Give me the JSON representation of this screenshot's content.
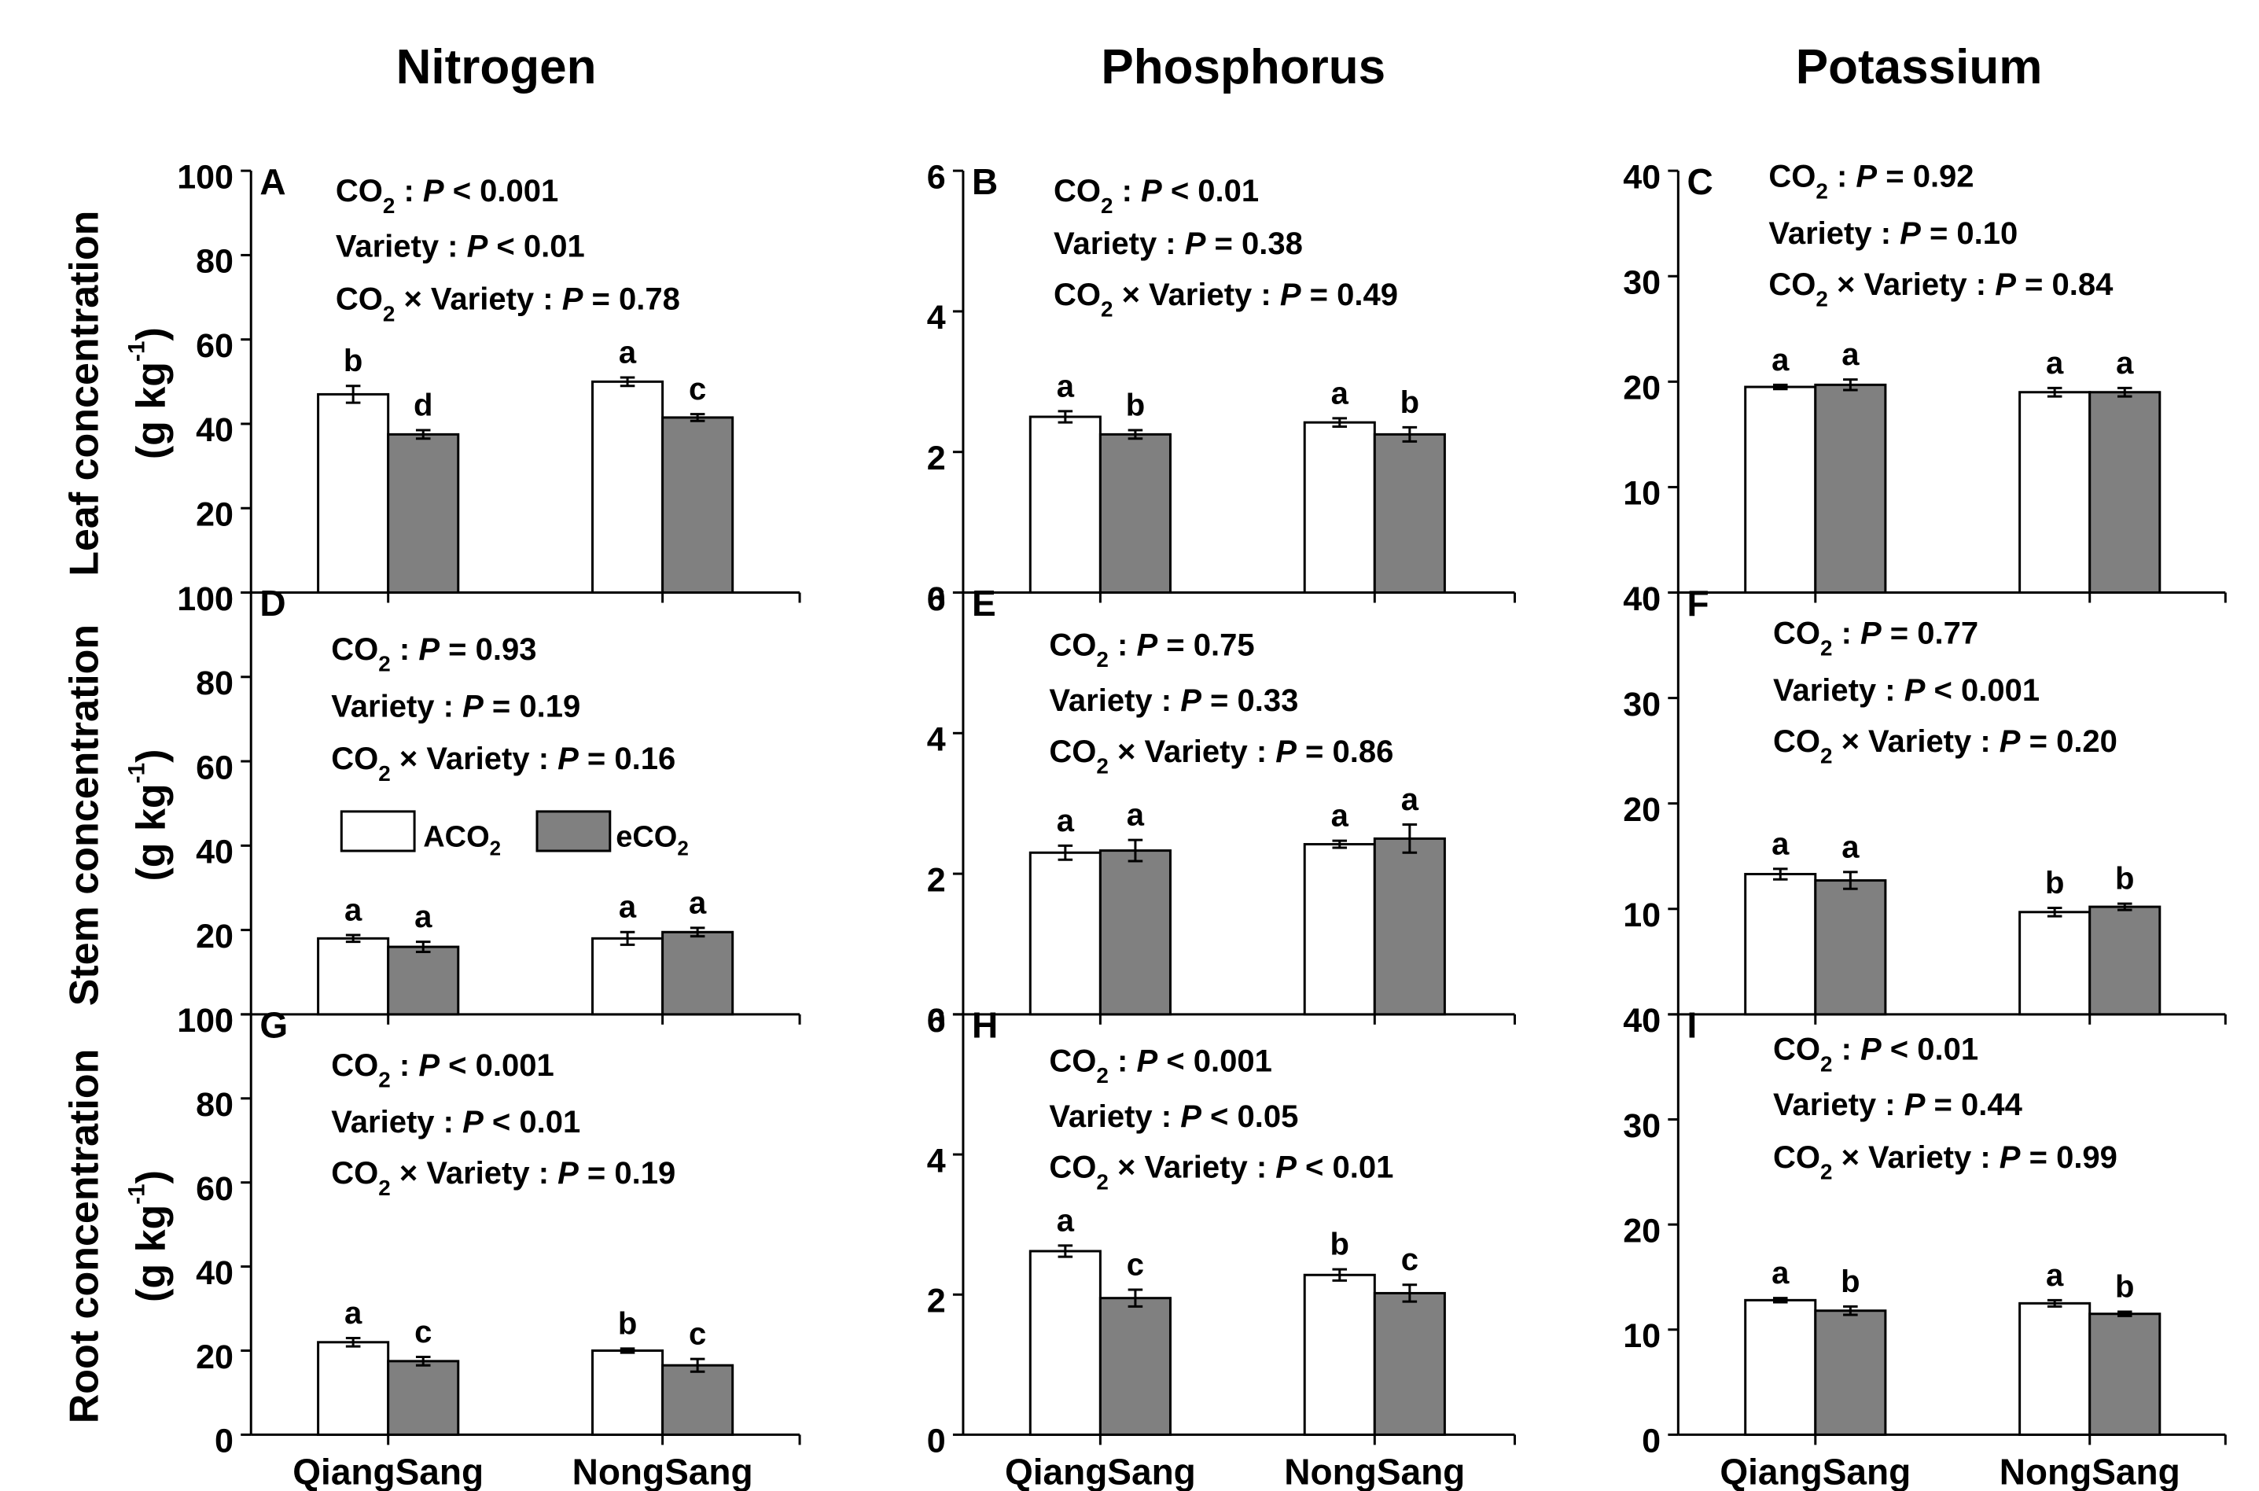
{
  "figure": {
    "column_titles": [
      "Nitrogen",
      "Phosphorus",
      "Potassium"
    ],
    "row_labels": [
      {
        "line1": "Leaf concentration",
        "line2": "(g kg",
        "sup": "-1",
        "close": ")"
      },
      {
        "line1": "Stem concentration",
        "line2": "(g kg",
        "sup": "-1",
        "close": ")"
      },
      {
        "line1": "Root concentration",
        "line2": "(g kg",
        "sup": "-1",
        "close": ")"
      }
    ],
    "legend": {
      "ambient": "ACO2",
      "elevated": "eCO2"
    },
    "colors": {
      "ambient_fill": "#ffffff",
      "elevated_fill": "#808080",
      "stroke": "#000000"
    }
  },
  "chart_data": [
    {
      "panel": "A",
      "row": 0,
      "col": 0,
      "type": "bar",
      "categories": [
        "QiangSang",
        "NongSang"
      ],
      "ylim": [
        0,
        100
      ],
      "ticks": [
        0,
        20,
        40,
        60,
        80,
        100
      ],
      "series": [
        {
          "name": "ACO2",
          "values": [
            47,
            50
          ],
          "errors": [
            2.0,
            1.0
          ],
          "letters": [
            "b",
            "a"
          ]
        },
        {
          "name": "eCO2",
          "values": [
            37.5,
            41.5
          ],
          "errors": [
            1.0,
            0.8
          ],
          "letters": [
            "d",
            "c"
          ]
        }
      ],
      "stats": [
        {
          "pre": "CO",
          "sub": "2",
          "mid": " : ",
          "ital": "P",
          "post": " < 0.001"
        },
        {
          "pre": "Variety : ",
          "sub": "",
          "mid": "",
          "ital": "P",
          "post": " < 0.01"
        },
        {
          "pre": "CO",
          "sub": "2",
          "mid": " × Variety : ",
          "ital": "P",
          "post": " = 0.78"
        }
      ]
    },
    {
      "panel": "B",
      "row": 0,
      "col": 1,
      "type": "bar",
      "categories": [
        "QiangSang",
        "NongSang"
      ],
      "ylim": [
        0,
        6
      ],
      "ticks": [
        0,
        2,
        4,
        6
      ],
      "series": [
        {
          "name": "ACO2",
          "values": [
            2.5,
            2.42
          ],
          "errors": [
            0.08,
            0.06
          ],
          "letters": [
            "a",
            "a"
          ]
        },
        {
          "name": "eCO2",
          "values": [
            2.25,
            2.25
          ],
          "errors": [
            0.06,
            0.1
          ],
          "letters": [
            "b",
            "b"
          ]
        }
      ],
      "stats": [
        {
          "pre": "CO",
          "sub": "2",
          "mid": " : ",
          "ital": "P",
          "post": " < 0.01"
        },
        {
          "pre": "Variety : ",
          "sub": "",
          "mid": "",
          "ital": "P",
          "post": " = 0.38"
        },
        {
          "pre": "CO",
          "sub": "2",
          "mid": " × Variety : ",
          "ital": "P",
          "post": " = 0.49"
        }
      ]
    },
    {
      "panel": "C",
      "row": 0,
      "col": 2,
      "type": "bar",
      "categories": [
        "QiangSang",
        "NongSang"
      ],
      "ylim": [
        0,
        40
      ],
      "ticks": [
        0,
        10,
        20,
        30,
        40
      ],
      "series": [
        {
          "name": "ACO2",
          "values": [
            19.5,
            19.0
          ],
          "errors": [
            0.2,
            0.4
          ],
          "letters": [
            "a",
            "a"
          ]
        },
        {
          "name": "eCO2",
          "values": [
            19.7,
            19.0
          ],
          "errors": [
            0.5,
            0.4
          ],
          "letters": [
            "a",
            "a"
          ]
        }
      ],
      "stats": [
        {
          "pre": "CO",
          "sub": "2",
          "mid": " : ",
          "ital": "P",
          "post": " = 0.92"
        },
        {
          "pre": "Variety : ",
          "sub": "",
          "mid": "",
          "ital": "P",
          "post": " = 0.10"
        },
        {
          "pre": "CO",
          "sub": "2",
          "mid": " × Variety : ",
          "ital": "P",
          "post": " = 0.84"
        }
      ]
    },
    {
      "panel": "D",
      "row": 1,
      "col": 0,
      "type": "bar",
      "categories": [
        "QiangSang",
        "NongSang"
      ],
      "ylim": [
        0,
        100
      ],
      "ticks": [
        0,
        20,
        40,
        60,
        80,
        100
      ],
      "series": [
        {
          "name": "ACO2",
          "values": [
            18,
            18
          ],
          "errors": [
            0.8,
            1.5
          ],
          "letters": [
            "a",
            "a"
          ]
        },
        {
          "name": "eCO2",
          "values": [
            16,
            19.5
          ],
          "errors": [
            1.2,
            1.0
          ],
          "letters": [
            "a",
            "a"
          ]
        }
      ],
      "stats": [
        {
          "pre": "CO",
          "sub": "2",
          "mid": " : ",
          "ital": "P",
          "post": " = 0.93"
        },
        {
          "pre": "Variety : ",
          "sub": "",
          "mid": "",
          "ital": "P",
          "post": " = 0.19"
        },
        {
          "pre": "CO",
          "sub": "2",
          "mid": " × Variety : ",
          "ital": "P",
          "post": " = 0.16"
        }
      ]
    },
    {
      "panel": "E",
      "row": 1,
      "col": 1,
      "type": "bar",
      "categories": [
        "QiangSang",
        "NongSang"
      ],
      "ylim": [
        0,
        6
      ],
      "ticks": [
        0,
        2,
        4,
        6
      ],
      "series": [
        {
          "name": "ACO2",
          "values": [
            2.3,
            2.42
          ],
          "errors": [
            0.1,
            0.05
          ],
          "letters": [
            "a",
            "a"
          ]
        },
        {
          "name": "eCO2",
          "values": [
            2.33,
            2.5
          ],
          "errors": [
            0.15,
            0.2
          ],
          "letters": [
            "a",
            "a"
          ]
        }
      ],
      "stats": [
        {
          "pre": "CO",
          "sub": "2",
          "mid": " : ",
          "ital": "P",
          "post": " = 0.75"
        },
        {
          "pre": "Variety : ",
          "sub": "",
          "mid": "",
          "ital": "P",
          "post": " = 0.33"
        },
        {
          "pre": "CO",
          "sub": "2",
          "mid": " × Variety : ",
          "ital": "P",
          "post": " = 0.86"
        }
      ]
    },
    {
      "panel": "F",
      "row": 1,
      "col": 2,
      "type": "bar",
      "categories": [
        "QiangSang",
        "NongSang"
      ],
      "ylim": [
        0,
        40
      ],
      "ticks": [
        0,
        10,
        20,
        30,
        40
      ],
      "series": [
        {
          "name": "ACO2",
          "values": [
            13.3,
            9.7
          ],
          "errors": [
            0.5,
            0.4
          ],
          "letters": [
            "a",
            "b"
          ]
        },
        {
          "name": "eCO2",
          "values": [
            12.7,
            10.2
          ],
          "errors": [
            0.8,
            0.3
          ],
          "letters": [
            "a",
            "b"
          ]
        }
      ],
      "stats": [
        {
          "pre": "CO",
          "sub": "2",
          "mid": " : ",
          "ital": "P",
          "post": " = 0.77"
        },
        {
          "pre": "Variety : ",
          "sub": "",
          "mid": "",
          "ital": "P",
          "post": " < 0.001"
        },
        {
          "pre": "CO",
          "sub": "2",
          "mid": " × Variety : ",
          "ital": "P",
          "post": " = 0.20"
        }
      ]
    },
    {
      "panel": "G",
      "row": 2,
      "col": 0,
      "type": "bar",
      "categories": [
        "QiangSang",
        "NongSang"
      ],
      "ylim": [
        0,
        100
      ],
      "ticks": [
        0,
        20,
        40,
        60,
        80,
        100
      ],
      "series": [
        {
          "name": "ACO2",
          "values": [
            22,
            20
          ],
          "errors": [
            1.0,
            0.5
          ],
          "letters": [
            "a",
            "b"
          ]
        },
        {
          "name": "eCO2",
          "values": [
            17.5,
            16.5
          ],
          "errors": [
            1.0,
            1.5
          ],
          "letters": [
            "c",
            "c"
          ]
        }
      ],
      "stats": [
        {
          "pre": "CO",
          "sub": "2",
          "mid": " : ",
          "ital": "P",
          "post": " < 0.001"
        },
        {
          "pre": "Variety : ",
          "sub": "",
          "mid": "",
          "ital": "P",
          "post": " < 0.01"
        },
        {
          "pre": "CO",
          "sub": "2",
          "mid": " × Variety : ",
          "ital": "P",
          "post": " = 0.19"
        }
      ]
    },
    {
      "panel": "H",
      "row": 2,
      "col": 1,
      "type": "bar",
      "categories": [
        "QiangSang",
        "NongSang"
      ],
      "ylim": [
        0,
        6
      ],
      "ticks": [
        0,
        2,
        4,
        6
      ],
      "series": [
        {
          "name": "ACO2",
          "values": [
            2.62,
            2.28
          ],
          "errors": [
            0.08,
            0.08
          ],
          "letters": [
            "a",
            "b"
          ]
        },
        {
          "name": "eCO2",
          "values": [
            1.95,
            2.02
          ],
          "errors": [
            0.12,
            0.12
          ],
          "letters": [
            "c",
            "c"
          ]
        }
      ],
      "stats": [
        {
          "pre": "CO",
          "sub": "2",
          "mid": " : ",
          "ital": "P",
          "post": " < 0.001"
        },
        {
          "pre": "Variety : ",
          "sub": "",
          "mid": "",
          "ital": "P",
          "post": " < 0.05"
        },
        {
          "pre": "CO",
          "sub": "2",
          "mid": " × Variety : ",
          "ital": "P",
          "post": " < 0.01"
        }
      ]
    },
    {
      "panel": "I",
      "row": 2,
      "col": 2,
      "type": "bar",
      "categories": [
        "QiangSang",
        "NongSang"
      ],
      "ylim": [
        0,
        40
      ],
      "ticks": [
        0,
        10,
        20,
        30,
        40
      ],
      "series": [
        {
          "name": "ACO2",
          "values": [
            12.8,
            12.5
          ],
          "errors": [
            0.2,
            0.3
          ],
          "letters": [
            "a",
            "a"
          ]
        },
        {
          "name": "eCO2",
          "values": [
            11.8,
            11.5
          ],
          "errors": [
            0.4,
            0.2
          ],
          "letters": [
            "b",
            "b"
          ]
        }
      ],
      "stats": [
        {
          "pre": "CO",
          "sub": "2",
          "mid": " : ",
          "ital": "P",
          "post": " < 0.01"
        },
        {
          "pre": "Variety : ",
          "sub": "",
          "mid": "",
          "ital": "P",
          "post": " = 0.44"
        },
        {
          "pre": "CO",
          "sub": "2",
          "mid": " × Variety : ",
          "ital": "P",
          "post": " = 0.99"
        }
      ]
    }
  ]
}
